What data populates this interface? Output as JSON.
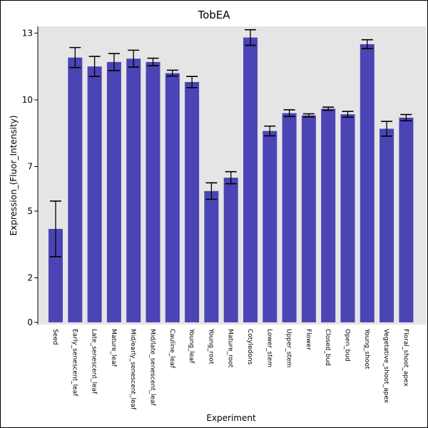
{
  "chart_data": {
    "type": "bar",
    "title": "TobEA",
    "xlabel": "Experiment",
    "ylabel": "Expression_(Fluor_Intensity)",
    "ylim": [
      -0.1,
      13.3
    ],
    "yticks": [
      0,
      2,
      5,
      7,
      10,
      13
    ],
    "grid": false,
    "colors": {
      "bar": "#4b44b5",
      "plot_bg": "#e5e5e5",
      "error": "#000000"
    },
    "categories": [
      "Seed",
      "Early_senescent_leaf",
      "Late_senescent_leaf",
      "Mature_leaf",
      "Mid/early_senescent_leaf",
      "Mid/late_senescent_leaf",
      "Cauline_leaf",
      "Young_leaf",
      "Young_root",
      "Mature_root",
      "Cotyledons",
      "Lower_stem",
      "Upper_stem",
      "Flower",
      "Closed_bud",
      "Open_bud",
      "Young_shoot",
      "Vegetative_shoot_apex",
      "Floral_shoot_apex"
    ],
    "values": [
      4.2,
      11.9,
      11.5,
      11.7,
      11.85,
      11.7,
      11.2,
      10.8,
      5.9,
      6.5,
      12.8,
      8.6,
      9.4,
      9.3,
      9.6,
      9.35,
      12.5,
      8.7,
      9.2
    ],
    "errors": [
      1.25,
      0.45,
      0.45,
      0.38,
      0.38,
      0.17,
      0.13,
      0.25,
      0.37,
      0.27,
      0.35,
      0.22,
      0.15,
      0.07,
      0.07,
      0.13,
      0.2,
      0.33,
      0.14
    ]
  }
}
